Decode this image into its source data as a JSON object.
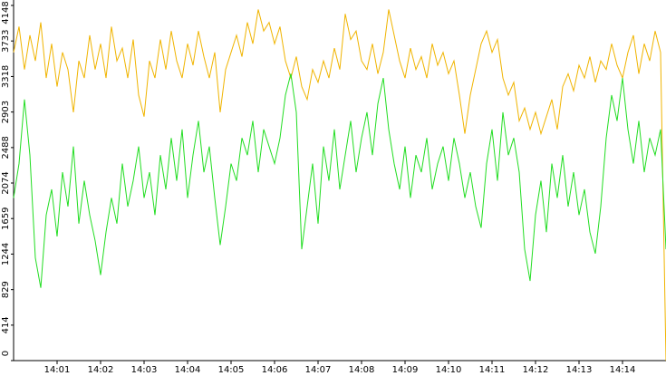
{
  "chart_data": {
    "type": "line",
    "xlim": [
      0,
      15
    ],
    "xticks": [
      {
        "value": 1,
        "label": "14:01"
      },
      {
        "value": 2,
        "label": "14:02"
      },
      {
        "value": 3,
        "label": "14:03"
      },
      {
        "value": 4,
        "label": "14:04"
      },
      {
        "value": 5,
        "label": "14:05"
      },
      {
        "value": 6,
        "label": "14:06"
      },
      {
        "value": 7,
        "label": "14:07"
      },
      {
        "value": 8,
        "label": "14:08"
      },
      {
        "value": 9,
        "label": "14:09"
      },
      {
        "value": 10,
        "label": "14:10"
      },
      {
        "value": 11,
        "label": "14:11"
      },
      {
        "value": 12,
        "label": "14:12"
      },
      {
        "value": 13,
        "label": "14:13"
      },
      {
        "value": 14,
        "label": "14:14"
      }
    ],
    "ylim": [
      0,
      4148
    ],
    "yticks": [
      0,
      414,
      829,
      1244,
      1659,
      2074,
      2488,
      2903,
      3318,
      3733,
      4148
    ],
    "series": [
      {
        "color": "#f0b400",
        "values": [
          3600,
          3900,
          3400,
          3800,
          3500,
          3950,
          3300,
          3700,
          3200,
          3600,
          3400,
          2900,
          3500,
          3300,
          3800,
          3400,
          3700,
          3300,
          3900,
          3500,
          3650,
          3300,
          3750,
          3100,
          2850,
          3500,
          3300,
          3750,
          3400,
          3850,
          3500,
          3300,
          3700,
          3450,
          3850,
          3550,
          3300,
          3600,
          2900,
          3400,
          3600,
          3800,
          3550,
          3950,
          3700,
          4100,
          3850,
          3950,
          3700,
          3900,
          3500,
          3300,
          3550,
          3200,
          3050,
          3400,
          3250,
          3500,
          3300,
          3650,
          3400,
          4050,
          3750,
          3850,
          3500,
          3400,
          3700,
          3350,
          3600,
          4100,
          3800,
          3500,
          3300,
          3650,
          3400,
          3550,
          3300,
          3700,
          3450,
          3600,
          3350,
          3500,
          3100,
          2650,
          3100,
          3400,
          3700,
          3850,
          3600,
          3750,
          3300,
          3100,
          3250,
          2800,
          2950,
          2700,
          2900,
          2650,
          2850,
          3050,
          2700,
          3200,
          3350,
          3150,
          3450,
          3300,
          3550,
          3250,
          3500,
          3400,
          3700,
          3450,
          3300,
          3600,
          3800,
          3350,
          3700,
          3500,
          3850,
          3600,
          0
        ]
      },
      {
        "color": "#22dd22",
        "values": [
          1900,
          2300,
          3050,
          2400,
          1200,
          850,
          1700,
          2000,
          1450,
          2200,
          1800,
          2500,
          1600,
          2100,
          1700,
          1400,
          1000,
          1500,
          1900,
          1600,
          2300,
          1800,
          2100,
          2500,
          1900,
          2200,
          1700,
          2400,
          2000,
          2600,
          2100,
          2700,
          1900,
          2400,
          2800,
          2200,
          2500,
          1900,
          1350,
          1800,
          2300,
          2100,
          2600,
          2400,
          2800,
          2200,
          2700,
          2500,
          2300,
          2600,
          3100,
          3350,
          2900,
          1300,
          1800,
          2300,
          1600,
          2500,
          2100,
          2700,
          2000,
          2400,
          2800,
          2200,
          2600,
          2900,
          2400,
          3000,
          3300,
          2700,
          2300,
          2000,
          2500,
          1900,
          2400,
          2200,
          2600,
          2000,
          2300,
          2500,
          2100,
          2600,
          2300,
          1900,
          2200,
          1800,
          1550,
          2300,
          2700,
          2100,
          2900,
          2400,
          2600,
          2200,
          1300,
          930,
          1700,
          2100,
          1500,
          2300,
          1900,
          2400,
          1800,
          2200,
          1700,
          2000,
          1500,
          1250,
          1800,
          2600,
          3100,
          2800,
          3300,
          2700,
          2300,
          2800,
          2200,
          2600,
          2400,
          2700,
          1300
        ]
      }
    ]
  }
}
